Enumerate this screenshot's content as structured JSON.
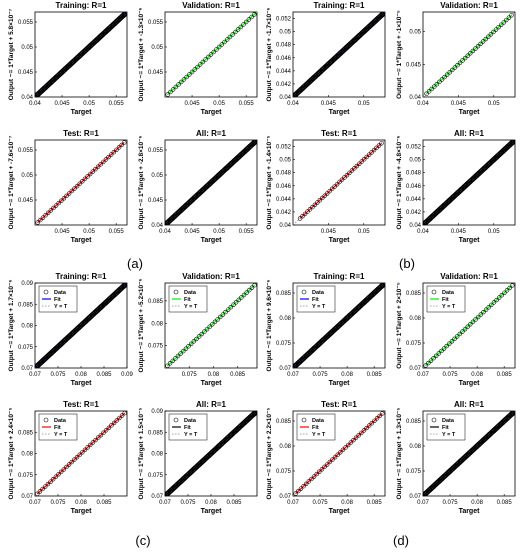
{
  "captions": [
    "(a)",
    "(b)",
    "(c)",
    "(d)"
  ],
  "legend_labels": {
    "data": "Data",
    "fit": "Fit",
    "yt": "Y = T"
  },
  "colors": {
    "training_fit": "#0000ff",
    "validation_fit": "#00ee00",
    "test_fit": "#ff0000",
    "all_fit": "#000000",
    "data_marker": "#000000",
    "identity_line": "#888888",
    "background": "#ffffff"
  },
  "chart_data": [
    {
      "group": "(a)",
      "type": "scatter",
      "title": "Training: R=1",
      "xlabel": "Target",
      "ylabel": "Output ~= 1*Target + 5.8×10⁻⁷",
      "xlim": [
        0.04,
        0.057
      ],
      "ylim": [
        0.04,
        0.057
      ],
      "xticks": [
        0.04,
        0.045,
        0.05,
        0.055
      ],
      "yticks": [
        0.04,
        0.045,
        0.05,
        0.055
      ],
      "fit_color": "#0000ff",
      "data_range": [
        0.04,
        0.057
      ],
      "style": "dense",
      "legend": false
    },
    {
      "group": "(a)",
      "type": "scatter",
      "title": "Validation: R=1",
      "xlabel": "Target",
      "ylabel": "Output ~= 1*Target + -1.3×10⁻⁶",
      "xlim": [
        0.04,
        0.057
      ],
      "ylim": [
        0.04,
        0.057
      ],
      "xticks": [
        0.045,
        0.05,
        0.055
      ],
      "yticks": [
        0.045,
        0.05,
        0.055
      ],
      "fit_color": "#00ee00",
      "data_range": [
        0.0405,
        0.057
      ],
      "style": "markers",
      "legend": false
    },
    {
      "group": "(a)",
      "type": "scatter",
      "title": "Test: R=1",
      "xlabel": "Target",
      "ylabel": "Output ~= 1*Target + -7.6×10⁻⁷",
      "xlim": [
        0.04,
        0.057
      ],
      "ylim": [
        0.04,
        0.057
      ],
      "xticks": [
        0.045,
        0.05,
        0.055
      ],
      "yticks": [
        0.045,
        0.05,
        0.055
      ],
      "fit_color": "#ff0000",
      "data_range": [
        0.0405,
        0.0565
      ],
      "style": "markers",
      "legend": false
    },
    {
      "group": "(a)",
      "type": "scatter",
      "title": "All: R=1",
      "xlabel": "Target",
      "ylabel": "Output ~= 1*Target + -2.8×10⁻⁶",
      "xlim": [
        0.04,
        0.057
      ],
      "ylim": [
        0.04,
        0.057
      ],
      "xticks": [
        0.04,
        0.045,
        0.05,
        0.055
      ],
      "yticks": [
        0.04,
        0.045,
        0.05,
        0.055
      ],
      "fit_color": "#000000",
      "data_range": [
        0.04,
        0.057
      ],
      "style": "dense",
      "legend": false
    },
    {
      "group": "(b)",
      "type": "scatter",
      "title": "Training: R=1",
      "xlabel": "Target",
      "ylabel": "Output ~= 1*Target + -1.7×10⁻⁶",
      "xlim": [
        0.04,
        0.053
      ],
      "ylim": [
        0.04,
        0.053
      ],
      "xticks": [
        0.04,
        0.045,
        0.05
      ],
      "yticks": [
        0.04,
        0.042,
        0.044,
        0.046,
        0.048,
        0.05,
        0.052
      ],
      "fit_color": "#0000ff",
      "data_range": [
        0.04,
        0.053
      ],
      "style": "dense",
      "legend": false
    },
    {
      "group": "(b)",
      "type": "scatter",
      "title": "Validation: R=1",
      "xlabel": "Target",
      "ylabel": "Output ~= 1*Target + -1×10⁻⁵",
      "xlim": [
        0.04,
        0.053
      ],
      "ylim": [
        0.04,
        0.053
      ],
      "xticks": [
        0.04,
        0.045,
        0.05
      ],
      "yticks": [
        0.04,
        0.045,
        0.05
      ],
      "fit_color": "#00ee00",
      "data_range": [
        0.0405,
        0.0525
      ],
      "style": "markers",
      "legend": false
    },
    {
      "group": "(b)",
      "type": "scatter",
      "title": "Test: R=1",
      "xlabel": "Target",
      "ylabel": "Output ~= 1*Target + -1.4×10⁻⁵",
      "xlim": [
        0.04,
        0.053
      ],
      "ylim": [
        0.04,
        0.053
      ],
      "xticks": [
        0.045,
        0.05
      ],
      "yticks": [
        0.04,
        0.042,
        0.044,
        0.046,
        0.048,
        0.05,
        0.052
      ],
      "fit_color": "#ff0000",
      "data_range": [
        0.041,
        0.0525
      ],
      "style": "markers",
      "legend": false
    },
    {
      "group": "(b)",
      "type": "scatter",
      "title": "All: R=1",
      "xlabel": "Target",
      "ylabel": "Output ~= 1*Target + -4.8×10⁻⁶",
      "xlim": [
        0.04,
        0.053
      ],
      "ylim": [
        0.04,
        0.053
      ],
      "xticks": [
        0.04,
        0.045,
        0.05
      ],
      "yticks": [
        0.04,
        0.042,
        0.044,
        0.046,
        0.048,
        0.05,
        0.052
      ],
      "fit_color": "#000000",
      "data_range": [
        0.04,
        0.053
      ],
      "style": "dense",
      "legend": false
    },
    {
      "group": "(c)",
      "type": "scatter",
      "title": "Training: R=1",
      "xlabel": "Target",
      "ylabel": "Output ~= 1*Target + 1.7×10⁻⁶",
      "xlim": [
        0.07,
        0.09
      ],
      "ylim": [
        0.07,
        0.09
      ],
      "xticks": [
        0.07,
        0.075,
        0.08,
        0.085,
        0.09
      ],
      "yticks": [
        0.07,
        0.075,
        0.08,
        0.085,
        0.09
      ],
      "fit_color": "#0000ff",
      "data_range": [
        0.07,
        0.09
      ],
      "style": "dense",
      "legend": true
    },
    {
      "group": "(c)",
      "type": "scatter",
      "title": "Validation: R=1",
      "xlabel": "Target",
      "ylabel": "Output ~= 1*Target + -5.2×10⁻⁶",
      "xlim": [
        0.07,
        0.089
      ],
      "ylim": [
        0.07,
        0.089
      ],
      "xticks": [
        0.075,
        0.08,
        0.085
      ],
      "yticks": [
        0.075,
        0.08,
        0.085
      ],
      "fit_color": "#00ee00",
      "data_range": [
        0.0705,
        0.0885
      ],
      "style": "markers",
      "legend": true
    },
    {
      "group": "(c)",
      "type": "scatter",
      "title": "Test: R=1",
      "xlabel": "Target",
      "ylabel": "Output ~= 1*Target + 2.4×10⁻⁵",
      "xlim": [
        0.07,
        0.09
      ],
      "ylim": [
        0.07,
        0.09
      ],
      "xticks": [
        0.07,
        0.075,
        0.08,
        0.085
      ],
      "yticks": [
        0.07,
        0.075,
        0.08,
        0.085
      ],
      "fit_color": "#ff0000",
      "data_range": [
        0.0705,
        0.0895
      ],
      "style": "markers",
      "legend": true
    },
    {
      "group": "(c)",
      "type": "scatter",
      "title": "All: R=1",
      "xlabel": "Target",
      "ylabel": "Output ~= 1*Target + 1.5×10⁻⁵",
      "xlim": [
        0.07,
        0.09
      ],
      "ylim": [
        0.07,
        0.09
      ],
      "xticks": [
        0.07,
        0.075,
        0.08,
        0.085
      ],
      "yticks": [
        0.07,
        0.075,
        0.08,
        0.085,
        0.09
      ],
      "fit_color": "#000000",
      "data_range": [
        0.07,
        0.09
      ],
      "style": "dense",
      "legend": true
    },
    {
      "group": "(d)",
      "type": "scatter",
      "title": "Training: R=1",
      "xlabel": "Target",
      "ylabel": "Output ~= 1*Target + 9.6×10⁻⁶",
      "xlim": [
        0.07,
        0.087
      ],
      "ylim": [
        0.07,
        0.087
      ],
      "xticks": [
        0.07,
        0.075,
        0.08,
        0.085
      ],
      "yticks": [
        0.07,
        0.075,
        0.08,
        0.085
      ],
      "fit_color": "#0000ff",
      "data_range": [
        0.07,
        0.087
      ],
      "style": "dense",
      "legend": true
    },
    {
      "group": "(d)",
      "type": "scatter",
      "title": "Validation: R=1",
      "xlabel": "Target",
      "ylabel": "Output ~= 1*Target + 2×10⁻⁵",
      "xlim": [
        0.07,
        0.087
      ],
      "ylim": [
        0.07,
        0.087
      ],
      "xticks": [
        0.07,
        0.075,
        0.08,
        0.085
      ],
      "yticks": [
        0.07,
        0.075,
        0.08,
        0.085
      ],
      "fit_color": "#00ee00",
      "data_range": [
        0.0705,
        0.0865
      ],
      "style": "markers",
      "legend": true
    },
    {
      "group": "(d)",
      "type": "scatter",
      "title": "Test: R=1",
      "xlabel": "Target",
      "ylabel": "Output ~= 1*Target + 2.2×10⁻⁵",
      "xlim": [
        0.07,
        0.087
      ],
      "ylim": [
        0.07,
        0.087
      ],
      "xticks": [
        0.07,
        0.075,
        0.08,
        0.085
      ],
      "yticks": [
        0.07,
        0.075,
        0.08,
        0.085
      ],
      "fit_color": "#ff0000",
      "data_range": [
        0.0705,
        0.0865
      ],
      "style": "markers",
      "legend": true
    },
    {
      "group": "(d)",
      "type": "scatter",
      "title": "All: R=1",
      "xlabel": "Target",
      "ylabel": "Output ~= 1*Target + 1.3×10⁻⁵",
      "xlim": [
        0.07,
        0.087
      ],
      "ylim": [
        0.07,
        0.087
      ],
      "xticks": [
        0.07,
        0.075,
        0.08,
        0.085
      ],
      "yticks": [
        0.07,
        0.075,
        0.08,
        0.085
      ],
      "fit_color": "#000000",
      "data_range": [
        0.07,
        0.087
      ],
      "style": "dense",
      "legend": true
    }
  ]
}
